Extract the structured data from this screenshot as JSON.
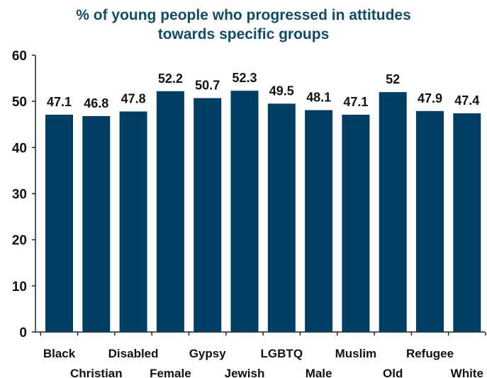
{
  "chart_data": {
    "type": "bar",
    "title_lines": [
      "% of young people who progressed in attitudes",
      "towards specific groups"
    ],
    "xlabel": "",
    "ylabel": "",
    "categories": [
      "Black",
      "Christian",
      "Disabled",
      "Female",
      "Gypsy",
      "Jewish",
      "LGBTQ",
      "Male",
      "Muslim",
      "Old",
      "Refugee",
      "White"
    ],
    "values": [
      47.1,
      46.8,
      47.8,
      52.2,
      50.7,
      52.3,
      49.5,
      48.1,
      47.1,
      52,
      47.9,
      47.4
    ],
    "value_labels": [
      "47.1",
      "46.8",
      "47.8",
      "52.2",
      "50.7",
      "52.3",
      "49.5",
      "48.1",
      "47.1",
      "52",
      "47.9",
      "47.4"
    ],
    "ylim": [
      0,
      60
    ],
    "yticks": [
      0,
      10,
      20,
      30,
      40,
      50,
      60
    ],
    "grid": false,
    "legend": "none",
    "bar_color": "#003f63"
  }
}
